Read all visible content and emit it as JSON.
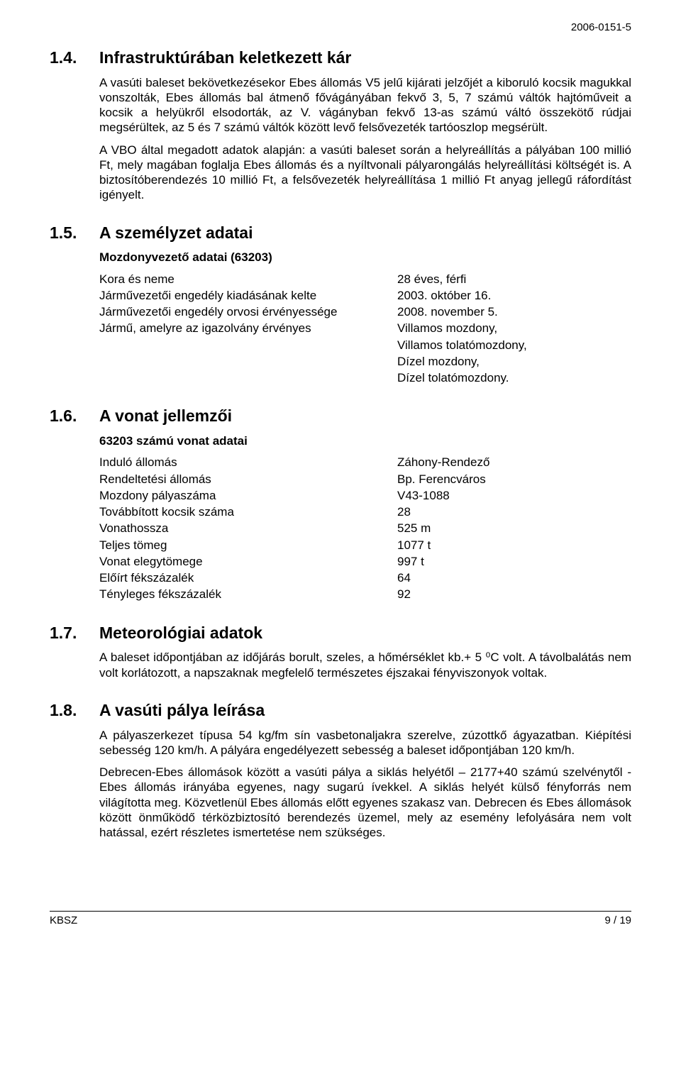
{
  "doc_id": "2006-0151-5",
  "s14": {
    "num": "1.4.",
    "title": "Infrastruktúrában keletkezett kár",
    "p1": "A vasúti baleset bekövetkezésekor Ebes állomás V5 jelű kijárati jelzőjét a kiboruló kocsik magukkal vonszolták, Ebes állomás bal átmenő fővágányában fekvő 3, 5, 7 számú váltók hajtóműveit a kocsik a helyükről elsodorták, az V. vágányban fekvő 13-as számú váltó összekötő rúdjai megsérültek, az 5 és 7 számú váltók között levő felsővezeték tartóoszlop megsérült.",
    "p2": "A VBO által megadott adatok alapján: a vasúti baleset során a helyreállítás a pályában 100 millió Ft, mely magában foglalja Ebes állomás és a nyíltvonali pályarongálás helyreállítási költségét is. A biztosítóberendezés 10 millió Ft, a felsővezeték helyreállítása 1 millió Ft anyag jellegű ráfordítást igényelt."
  },
  "s15": {
    "num": "1.5.",
    "title": "A személyzet adatai",
    "sub": "Mozdonyvezető adatai (63203)",
    "rows": [
      {
        "k": "Kora és neme",
        "v": "28 éves, férfi"
      },
      {
        "k": "Járművezetői engedély kiadásának kelte",
        "v": "2003. október 16."
      },
      {
        "k": "Járművezetői engedély orvosi érvényessége",
        "v": "2008. november 5."
      },
      {
        "k": "Jármű, amelyre az igazolvány érvényes",
        "v": "Villamos mozdony,"
      },
      {
        "k": "",
        "v": "Villamos tolatómozdony,"
      },
      {
        "k": "",
        "v": "Dízel mozdony,"
      },
      {
        "k": "",
        "v": "Dízel tolatómozdony."
      }
    ]
  },
  "s16": {
    "num": "1.6.",
    "title": "A vonat jellemzői",
    "sub": "63203 számú vonat adatai",
    "rows": [
      {
        "k": "Induló állomás",
        "v": "Záhony-Rendező"
      },
      {
        "k": "Rendeltetési állomás",
        "v": "Bp. Ferencváros"
      },
      {
        "k": "Mozdony pályaszáma",
        "v": "V43-1088"
      },
      {
        "k": "Továbbított kocsik száma",
        "v": "28"
      },
      {
        "k": "Vonathossza",
        "v": "525 m"
      },
      {
        "k": "Teljes tömeg",
        "v": "1077 t"
      },
      {
        "k": "Vonat elegytömege",
        "v": "997 t"
      },
      {
        "k": "Előírt fékszázalék",
        "v": "64"
      },
      {
        "k": "Tényleges fékszázalék",
        "v": "92"
      }
    ]
  },
  "s17": {
    "num": "1.7.",
    "title": "Meteorológiai adatok",
    "p1": "A baleset időpontjában az időjárás borult, szeles, a hőmérséklet kb.+ 5 ⁰C volt. A távolbalátás nem volt korlátozott, a napszaknak megfelelő természetes éjszakai fényviszonyok voltak."
  },
  "s18": {
    "num": "1.8.",
    "title": "A vasúti pálya leírása",
    "p1": "A pályaszerkezet típusa 54 kg/fm sín vasbetonaljakra szerelve, zúzottkő ágyazatban. Kiépítési sebesség 120 km/h. A pályára engedélyezett sebesség a baleset időpontjában 120 km/h.",
    "p2": "Debrecen-Ebes állomások között a vasúti pálya a siklás helyétől – 2177+40 számú szelvénytől - Ebes állomás irányába egyenes, nagy sugarú ívekkel. A siklás helyét külső fényforrás nem világította meg. Közvetlenül Ebes állomás előtt egyenes szakasz van. Debrecen és Ebes állomások között önműködő térközbiztosító berendezés üzemel, mely az esemény lefolyására nem volt hatással, ezért részletes ismertetése nem szükséges."
  },
  "footer": {
    "left": "KBSZ",
    "right": "9 / 19"
  }
}
